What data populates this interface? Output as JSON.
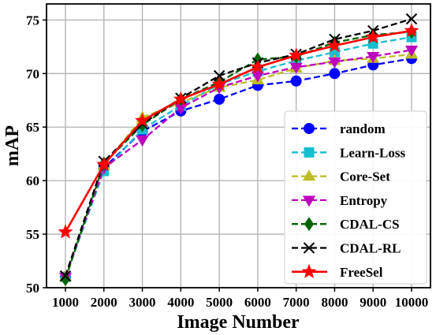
{
  "chart_data": {
    "type": "line",
    "title": "",
    "xlabel": "Image Number",
    "ylabel": "mAP",
    "x": [
      1000,
      2000,
      3000,
      4000,
      5000,
      6000,
      7000,
      8000,
      9000,
      10000
    ],
    "x_tick_labels": [
      "1000",
      "2000",
      "3000",
      "4000",
      "5000",
      "6000",
      "7000",
      "8000",
      "9000",
      "10000"
    ],
    "ylim": [
      50,
      76.5
    ],
    "y_ticks": [
      50,
      55,
      60,
      65,
      70,
      75
    ],
    "y_tick_labels": [
      "50",
      "55",
      "60",
      "65",
      "70",
      "75"
    ],
    "grid": true,
    "legend_position": "lower-right",
    "series": [
      {
        "name": "random",
        "color": "#0000ff",
        "dash": "dashed",
        "marker": "circle",
        "values": [
          51.0,
          61.2,
          64.6,
          66.5,
          67.6,
          68.9,
          69.3,
          70.0,
          70.8,
          71.4
        ]
      },
      {
        "name": "Learn-Loss",
        "color": "#17becf",
        "dash": "dashed",
        "marker": "square",
        "values": [
          51.0,
          60.9,
          64.8,
          67.0,
          69.0,
          70.2,
          71.2,
          72.0,
          72.8,
          73.4
        ]
      },
      {
        "name": "Core-Set",
        "color": "#bcbd22",
        "dash": "dashed",
        "marker": "triangle-up",
        "values": [
          51.0,
          61.4,
          65.9,
          67.3,
          68.7,
          69.4,
          70.5,
          71.2,
          71.4,
          71.8
        ]
      },
      {
        "name": "Entropy",
        "color": "#bf00bf",
        "dash": "dashed",
        "marker": "triangle-down",
        "values": [
          51.0,
          61.2,
          63.8,
          66.8,
          68.7,
          69.8,
          70.6,
          71.1,
          71.6,
          72.2
        ]
      },
      {
        "name": "CDAL-CS",
        "color": "#006400",
        "dash": "dashed",
        "marker": "diamond",
        "values": [
          50.8,
          61.6,
          65.2,
          67.6,
          69.2,
          71.3,
          71.6,
          72.9,
          73.6,
          73.9
        ]
      },
      {
        "name": "CDAL-RL",
        "color": "#000000",
        "dash": "dashed",
        "marker": "x",
        "values": [
          51.1,
          61.8,
          65.3,
          67.7,
          69.8,
          71.0,
          71.8,
          73.2,
          74.0,
          75.1
        ]
      },
      {
        "name": "FreeSel",
        "color": "#ff0000",
        "dash": "solid",
        "marker": "star",
        "values": [
          55.2,
          61.5,
          65.6,
          67.6,
          69.0,
          70.6,
          71.7,
          72.6,
          73.4,
          74.0
        ]
      }
    ]
  }
}
